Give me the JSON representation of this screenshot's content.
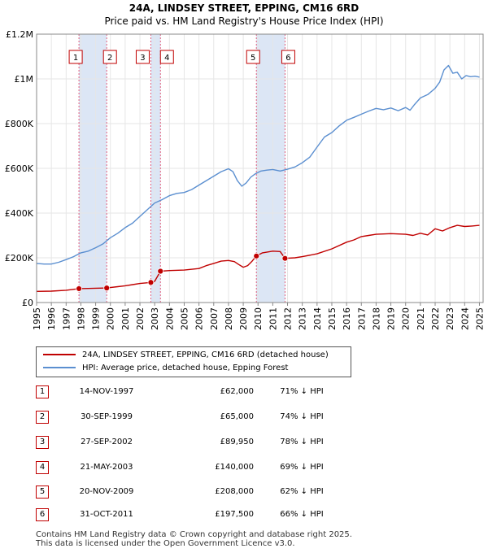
{
  "chart_data": {
    "type": "line",
    "title": "24A, LINDSEY STREET, EPPING, CM16 6RD",
    "subtitle": "Price paid vs. HM Land Registry's House Price Index (HPI)",
    "xlabel": "",
    "ylabel": "",
    "xlim": [
      1995.0,
      2025.25
    ],
    "ylim": [
      0,
      1200000
    ],
    "y_ticks": [
      0,
      200000,
      400000,
      600000,
      800000,
      1000000,
      1200000
    ],
    "y_tick_labels": [
      "£0",
      "£200K",
      "£400K",
      "£600K",
      "£800K",
      "£1M",
      "£1.2M"
    ],
    "x_ticks": [
      1995,
      1996,
      1997,
      1998,
      1999,
      2000,
      2001,
      2002,
      2003,
      2004,
      2005,
      2006,
      2007,
      2008,
      2009,
      2010,
      2011,
      2012,
      2013,
      2014,
      2015,
      2016,
      2017,
      2018,
      2019,
      2020,
      2021,
      2022,
      2023,
      2024,
      2025
    ],
    "grid": true,
    "colors": {
      "property": "#c00000",
      "hpi": "#5b8fd0",
      "shade": "#dce6f5",
      "vline": "#e0607e",
      "marker_border": "#c00000"
    },
    "series": [
      {
        "name": "24A, LINDSEY STREET, EPPING, CM16 6RD (detached house)",
        "color": "#c00000",
        "x": [
          1995.0,
          1996.0,
          1997.0,
          1997.87,
          1998.5,
          1999.0,
          1999.75,
          2000.5,
          2001.0,
          2001.5,
          2002.0,
          2002.74,
          2003.0,
          2003.39,
          2004.0,
          2005.0,
          2006.0,
          2006.5,
          2007.0,
          2007.5,
          2008.0,
          2008.4,
          2008.7,
          2009.0,
          2009.3,
          2009.6,
          2009.89,
          2010.3,
          2011.0,
          2011.5,
          2011.83,
          2012.5,
          2013.0,
          2014.0,
          2015.0,
          2016.0,
          2016.5,
          2017.0,
          2017.5,
          2018.0,
          2019.0,
          2020.0,
          2020.5,
          2021.0,
          2021.5,
          2022.0,
          2022.5,
          2023.0,
          2023.5,
          2024.0,
          2024.5,
          2025.0
        ],
        "values": [
          50000,
          51000,
          55000,
          62000,
          63000,
          64000,
          65000,
          71000,
          75000,
          80000,
          85000,
          89950,
          95000,
          140000,
          143000,
          145000,
          152000,
          165000,
          175000,
          185000,
          188000,
          183000,
          170000,
          158000,
          165000,
          185000,
          208000,
          222000,
          230000,
          228000,
          197500,
          200000,
          205000,
          218000,
          240000,
          270000,
          280000,
          295000,
          300000,
          305000,
          308000,
          305000,
          300000,
          310000,
          302000,
          330000,
          320000,
          335000,
          345000,
          340000,
          342000,
          345000
        ]
      },
      {
        "name": "HPI: Average price, detached house, Epping Forest",
        "color": "#5b8fd0",
        "x": [
          1995.0,
          1995.5,
          1996.0,
          1996.5,
          1997.0,
          1997.5,
          1998.0,
          1998.5,
          1999.0,
          1999.5,
          2000.0,
          2000.5,
          2001.0,
          2001.5,
          2002.0,
          2002.5,
          2003.0,
          2003.5,
          2004.0,
          2004.5,
          2005.0,
          2005.5,
          2006.0,
          2006.5,
          2007.0,
          2007.5,
          2008.0,
          2008.3,
          2008.6,
          2008.9,
          2009.2,
          2009.5,
          2009.8,
          2010.2,
          2010.6,
          2011.0,
          2011.5,
          2012.0,
          2012.5,
          2013.0,
          2013.5,
          2014.0,
          2014.5,
          2015.0,
          2015.5,
          2016.0,
          2016.5,
          2017.0,
          2017.5,
          2018.0,
          2018.5,
          2019.0,
          2019.5,
          2020.0,
          2020.3,
          2020.6,
          2021.0,
          2021.5,
          2022.0,
          2022.3,
          2022.6,
          2022.9,
          2023.2,
          2023.5,
          2023.8,
          2024.1,
          2024.4,
          2024.7,
          2025.0
        ],
        "values": [
          175000,
          172000,
          172000,
          180000,
          192000,
          205000,
          222000,
          230000,
          245000,
          262000,
          290000,
          310000,
          335000,
          355000,
          385000,
          415000,
          445000,
          460000,
          478000,
          488000,
          492000,
          505000,
          525000,
          545000,
          565000,
          585000,
          598000,
          585000,
          545000,
          520000,
          535000,
          560000,
          575000,
          588000,
          592000,
          595000,
          588000,
          596000,
          606000,
          625000,
          650000,
          695000,
          740000,
          760000,
          790000,
          815000,
          828000,
          842000,
          856000,
          868000,
          862000,
          870000,
          858000,
          872000,
          860000,
          885000,
          915000,
          930000,
          958000,
          985000,
          1040000,
          1060000,
          1025000,
          1030000,
          1000000,
          1015000,
          1010000,
          1012000,
          1008000
        ]
      }
    ],
    "transactions": [
      {
        "label": "1",
        "date": "14-NOV-1997",
        "x": 1997.87,
        "price": "£62,000",
        "value": 62000,
        "hpi": "71% ↓ HPI"
      },
      {
        "label": "2",
        "date": "30-SEP-1999",
        "x": 1999.75,
        "price": "£65,000",
        "value": 65000,
        "hpi": "74% ↓ HPI"
      },
      {
        "label": "3",
        "date": "27-SEP-2002",
        "x": 2002.74,
        "price": "£89,950",
        "value": 89950,
        "hpi": "78% ↓ HPI"
      },
      {
        "label": "4",
        "date": "21-MAY-2003",
        "x": 2003.39,
        "price": "£140,000",
        "value": 140000,
        "hpi": "69% ↓ HPI"
      },
      {
        "label": "5",
        "date": "20-NOV-2009",
        "x": 2009.89,
        "price": "£208,000",
        "value": 208000,
        "hpi": "62% ↓ HPI"
      },
      {
        "label": "6",
        "date": "31-OCT-2011",
        "x": 2011.83,
        "price": "£197,500",
        "value": 197500,
        "hpi": "66% ↓ HPI"
      }
    ],
    "legend": {
      "property_label": "24A, LINDSEY STREET, EPPING, CM16 6RD (detached house)",
      "hpi_label": "HPI: Average price, detached house, Epping Forest"
    }
  },
  "footer": {
    "line1": "Contains HM Land Registry data © Crown copyright and database right 2025.",
    "line2": "This data is licensed under the Open Government Licence v3.0."
  }
}
